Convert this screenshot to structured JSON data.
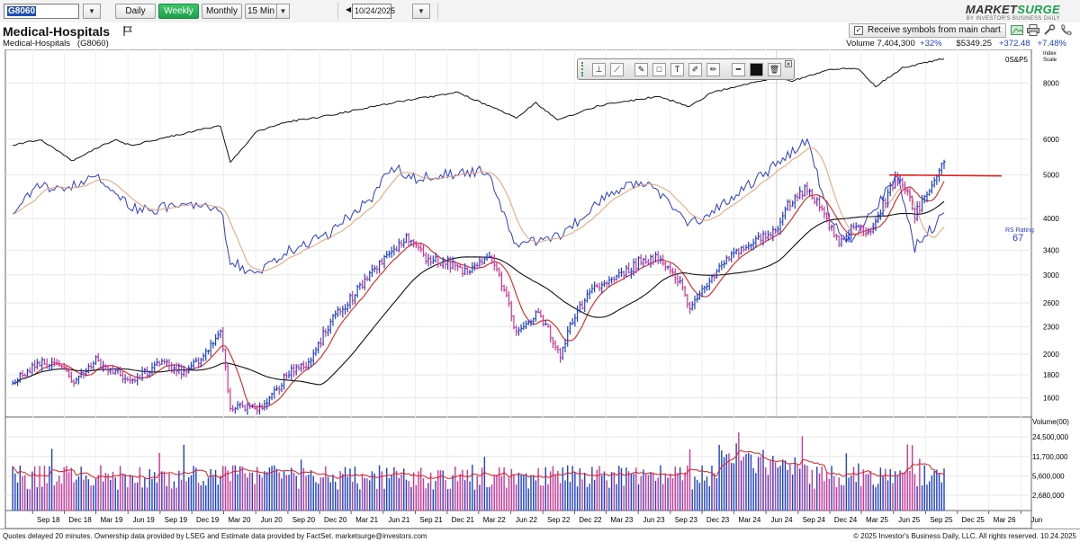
{
  "toolbar": {
    "symbol": "G8060",
    "periods": [
      "Daily",
      "Weekly",
      "Monthly"
    ],
    "active_period": "Weekly",
    "intraday": "15 Min",
    "date": "10/24/2025",
    "brand_name_a": "MARKET",
    "brand_name_b": "SURGE",
    "brand_sub": "BY INVESTOR'S BUSINESS DAILY"
  },
  "header": {
    "title": "Medical-Hospitals",
    "receive_label": "Receive symbols from main chart",
    "receive_checked": true
  },
  "info": {
    "name": "Medical-Hospitals",
    "code": "(G8060)",
    "volume": "Volume 7,404,300",
    "volume_change": "+32%",
    "price": "$5349.25",
    "change": "+372.48",
    "change_pct": "+7.48%"
  },
  "colors": {
    "bar_up": "#1c3fd8",
    "bar_down": "#d6309a",
    "ma_fast": "#e2201c",
    "ma_mid": "#e8a070",
    "ma_slow": "#111111",
    "rs_line": "#2b3bd8",
    "sp_line": "#111111",
    "resistance": "#e2201c"
  },
  "chart_data": [
    {
      "type": "line",
      "name": "price",
      "y_scale": "log",
      "ylim": [
        1450,
        9500
      ],
      "y_ticks": [
        1600,
        1800,
        2000,
        2300,
        2600,
        3000,
        3400,
        4000,
        5000,
        6000,
        8000
      ],
      "index_label": "0S&P5",
      "index_scale_label": [
        "Index",
        "Scale"
      ],
      "rs_label": "RS Rating",
      "rs_value": "67",
      "resistance_level": 5000,
      "anchors": [
        [
          "2018-07-06",
          1720
        ],
        [
          "2018-09-07",
          1880
        ],
        [
          "2018-11-02",
          1940
        ],
        [
          "2018-12-28",
          1750
        ],
        [
          "2019-03-01",
          1930
        ],
        [
          "2019-05-31",
          1750
        ],
        [
          "2019-07-05",
          1800
        ],
        [
          "2019-09-06",
          1900
        ],
        [
          "2019-11-01",
          1840
        ],
        [
          "2019-12-27",
          1920
        ],
        [
          "2020-02-21",
          2250
        ],
        [
          "2020-03-20",
          1500
        ],
        [
          "2020-05-01",
          1530
        ],
        [
          "2020-06-26",
          1520
        ],
        [
          "2020-08-28",
          1800
        ],
        [
          "2020-10-30",
          1920
        ],
        [
          "2020-12-31",
          2350
        ],
        [
          "2021-02-26",
          2650
        ],
        [
          "2021-04-30",
          3050
        ],
        [
          "2021-06-25",
          3400
        ],
        [
          "2021-08-06",
          3600
        ],
        [
          "2021-10-01",
          3280
        ],
        [
          "2021-12-31",
          3150
        ],
        [
          "2022-01-28",
          3000
        ],
        [
          "2022-04-01",
          3350
        ],
        [
          "2022-05-27",
          2600
        ],
        [
          "2022-06-17",
          2200
        ],
        [
          "2022-08-19",
          2500
        ],
        [
          "2022-10-21",
          2000
        ],
        [
          "2022-12-02",
          2450
        ],
        [
          "2023-01-27",
          2800
        ],
        [
          "2023-03-31",
          2950
        ],
        [
          "2023-06-02",
          3200
        ],
        [
          "2023-07-28",
          3300
        ],
        [
          "2023-09-29",
          2900
        ],
        [
          "2023-10-27",
          2550
        ],
        [
          "2023-12-29",
          2950
        ],
        [
          "2024-03-01",
          3350
        ],
        [
          "2024-04-26",
          3550
        ],
        [
          "2024-06-28",
          3750
        ],
        [
          "2024-08-02",
          4300
        ],
        [
          "2024-09-20",
          4650
        ],
        [
          "2024-10-25",
          4350
        ],
        [
          "2024-12-27",
          3550
        ],
        [
          "2025-01-31",
          3800
        ],
        [
          "2025-03-28",
          3750
        ],
        [
          "2025-05-02",
          4300
        ],
        [
          "2025-06-06",
          4900
        ],
        [
          "2025-07-11",
          4650
        ],
        [
          "2025-07-31",
          4050
        ],
        [
          "2025-09-05",
          4600
        ],
        [
          "2025-10-24",
          5349
        ]
      ],
      "sp500_anchors": [
        [
          "2018-07-06",
          2750
        ],
        [
          "2018-09-21",
          2930
        ],
        [
          "2018-12-24",
          2350
        ],
        [
          "2019-04-26",
          2940
        ],
        [
          "2019-06-07",
          2750
        ],
        [
          "2019-12-27",
          3240
        ],
        [
          "2020-02-21",
          3380
        ],
        [
          "2020-03-20",
          2300
        ],
        [
          "2020-06-05",
          3190
        ],
        [
          "2020-08-28",
          3510
        ],
        [
          "2020-12-31",
          3760
        ],
        [
          "2021-06-25",
          4280
        ],
        [
          "2021-12-31",
          4770
        ],
        [
          "2022-06-17",
          3670
        ],
        [
          "2022-08-12",
          4280
        ],
        [
          "2022-10-14",
          3580
        ],
        [
          "2023-02-03",
          4140
        ],
        [
          "2023-07-28",
          4580
        ],
        [
          "2023-10-27",
          4120
        ],
        [
          "2023-12-29",
          4770
        ],
        [
          "2024-07-12",
          5630
        ],
        [
          "2024-08-09",
          5340
        ],
        [
          "2024-12-06",
          6090
        ],
        [
          "2025-02-21",
          6120
        ],
        [
          "2025-04-11",
          5070
        ],
        [
          "2025-06-27",
          6170
        ],
        [
          "2025-10-24",
          6790
        ]
      ],
      "rs_anchors": [
        [
          "2018-07-06",
          0.56
        ],
        [
          "2018-09-14",
          0.63
        ],
        [
          "2018-11-30",
          0.62
        ],
        [
          "2019-03-01",
          0.66
        ],
        [
          "2019-06-28",
          0.56
        ],
        [
          "2019-11-29",
          0.58
        ],
        [
          "2020-02-21",
          0.57
        ],
        [
          "2020-03-20",
          0.43
        ],
        [
          "2020-05-29",
          0.38
        ],
        [
          "2020-08-28",
          0.45
        ],
        [
          "2020-12-31",
          0.5
        ],
        [
          "2021-04-30",
          0.6
        ],
        [
          "2021-06-25",
          0.68
        ],
        [
          "2021-08-27",
          0.65
        ],
        [
          "2022-03-25",
          0.67
        ],
        [
          "2022-06-17",
          0.47
        ],
        [
          "2022-10-14",
          0.49
        ],
        [
          "2023-03-31",
          0.62
        ],
        [
          "2023-06-30",
          0.64
        ],
        [
          "2023-10-27",
          0.52
        ],
        [
          "2024-04-26",
          0.64
        ],
        [
          "2024-09-27",
          0.75
        ],
        [
          "2024-11-29",
          0.55
        ],
        [
          "2025-01-31",
          0.47
        ],
        [
          "2025-05-02",
          0.6
        ],
        [
          "2025-06-13",
          0.66
        ],
        [
          "2025-07-31",
          0.46
        ],
        [
          "2025-10-24",
          0.55
        ]
      ]
    },
    {
      "type": "bar",
      "name": "volume",
      "title": "Volume(00)",
      "y_scale": "log",
      "ylim": [
        1500000,
        52000000
      ],
      "y_ticks": [
        2680000,
        5600000,
        11700000,
        24500000
      ],
      "y_tick_labels": [
        "2,680,000",
        "5,600,000",
        "11,700,000",
        "24,500,000"
      ],
      "typical_volume": 6000000
    },
    {
      "type": "axis",
      "name": "time",
      "x_range": [
        "2018-06-15",
        "2026-07-01"
      ],
      "x_ticks": [
        "Sep 18",
        "Dec 18",
        "Mar 19",
        "Jun 19",
        "Sep 19",
        "Dec 19",
        "Mar 20",
        "Jun 20",
        "Sep 20",
        "Dec 20",
        "Mar 21",
        "Jun 21",
        "Sep 21",
        "Dec 21",
        "Mar 22",
        "Jun 22",
        "Sep 22",
        "Dec 22",
        "Mar 23",
        "Jun 23",
        "Sep 23",
        "Dec 23",
        "Mar 24",
        "Jun 24",
        "Sep 24",
        "Dec 24",
        "Mar 25",
        "Jun 25",
        "Sep 25",
        "Dec 25",
        "Mar 26",
        "Jun"
      ],
      "last_date": "2025-10-24"
    }
  ],
  "footer": {
    "left": "Quotes delayed 20 minutes. Ownership data provided by LSEG and Estimate data provided by FactSet. marketsurge@investors.com",
    "right": "© 2025 Investor's Business Daily, LLC. All rights reserved.      10.24.2025"
  }
}
